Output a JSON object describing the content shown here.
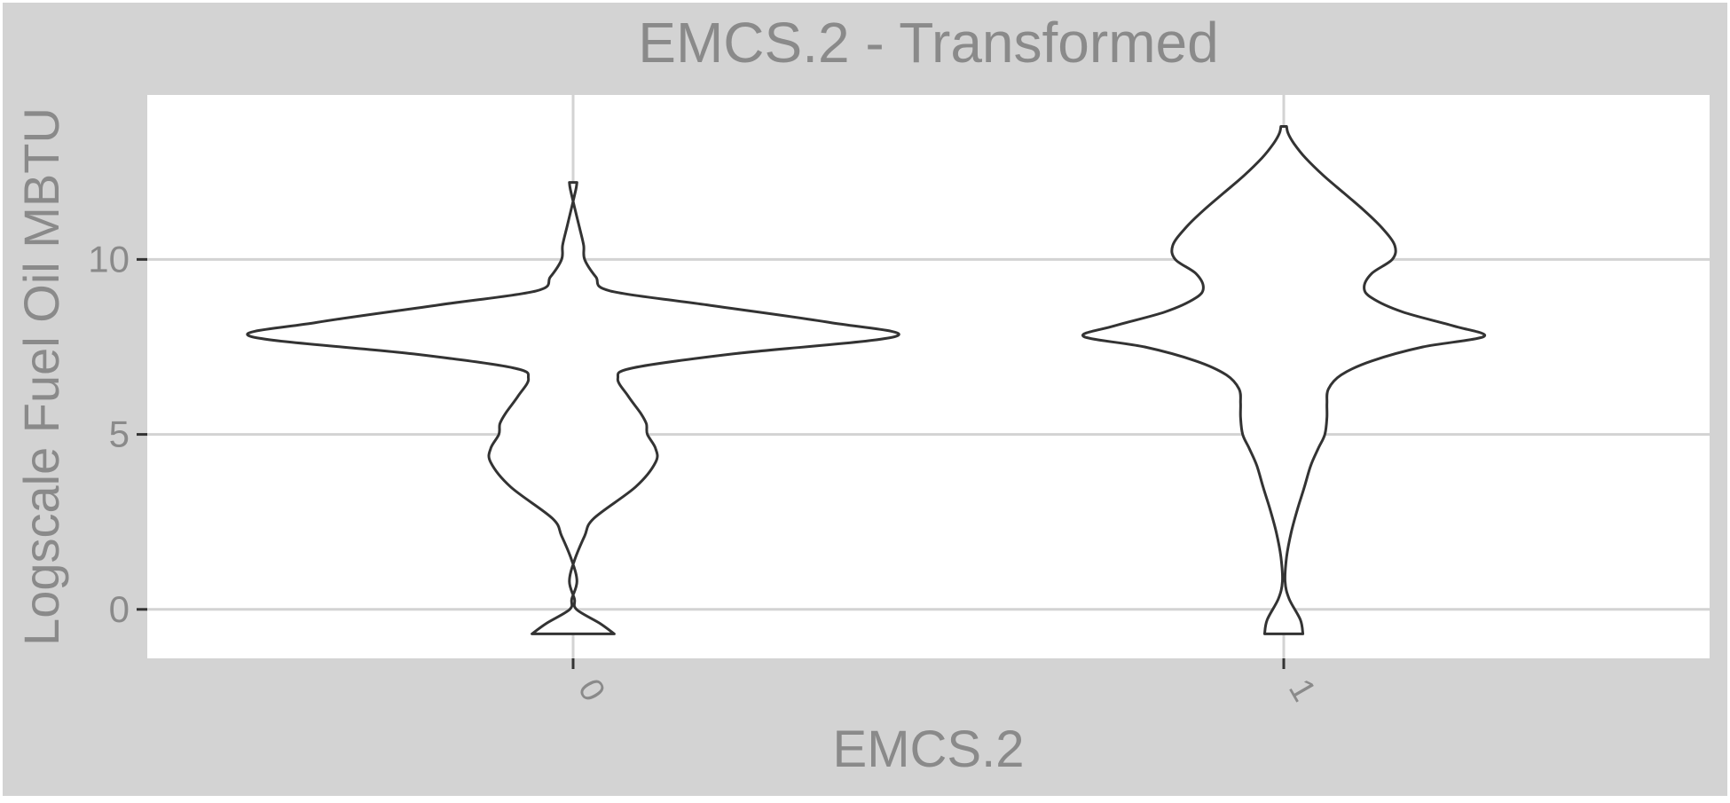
{
  "chart_data": {
    "type": "violin",
    "title": "EMCS.2 - Transformed",
    "xlabel": "EMCS.2",
    "ylabel": "Logscale Fuel Oil MBTU",
    "categories": [
      "0",
      "1"
    ],
    "ylim": [
      -1.4,
      14.7
    ],
    "yticks": [
      0,
      5,
      10
    ],
    "grid": true,
    "legend": "none",
    "colors": {
      "panel_background": "#d3d3d3",
      "plot_background": "#ffffff",
      "grid": "#d3d3d3",
      "text": "#8a8a8a",
      "outline": "#333333"
    },
    "violins": [
      {
        "category": "0",
        "range": [
          -0.7,
          12.2
        ],
        "density_profile": [
          [
            -0.7,
            0.078
          ],
          [
            -0.4,
            0.05
          ],
          [
            0.0,
            0.004
          ],
          [
            0.3,
            0.0
          ],
          [
            0.8,
            -0.01
          ],
          [
            1.4,
            0.0
          ],
          [
            2.1,
            0.02
          ],
          [
            2.6,
            0.038
          ],
          [
            3.5,
            0.12
          ],
          [
            4.2,
            0.159
          ],
          [
            4.6,
            0.159
          ],
          [
            5.0,
            0.143
          ],
          [
            5.3,
            0.141
          ],
          [
            5.6,
            0.13
          ],
          [
            6.1,
            0.105
          ],
          [
            6.6,
            0.085
          ],
          [
            6.9,
            0.115
          ],
          [
            7.3,
            0.31
          ],
          [
            7.8,
            0.63
          ],
          [
            8.2,
            0.5
          ],
          [
            8.7,
            0.26
          ],
          [
            9.1,
            0.07
          ],
          [
            9.5,
            0.042
          ],
          [
            10.0,
            0.02
          ],
          [
            10.4,
            0.018
          ],
          [
            10.9,
            0.01
          ],
          [
            11.5,
            0.0
          ],
          [
            12.0,
            -0.008
          ],
          [
            12.2,
            -0.01
          ]
        ]
      },
      {
        "category": "1",
        "range": [
          -0.7,
          13.8
        ],
        "density_profile": [
          [
            -0.7,
            0.035
          ],
          [
            -0.3,
            0.03
          ],
          [
            0.3,
            0.008
          ],
          [
            0.8,
            0.0
          ],
          [
            1.5,
            0.003
          ],
          [
            2.2,
            0.012
          ],
          [
            2.9,
            0.025
          ],
          [
            3.5,
            0.038
          ],
          [
            4.1,
            0.05
          ],
          [
            4.6,
            0.065
          ],
          [
            5.0,
            0.078
          ],
          [
            5.5,
            0.082
          ],
          [
            5.9,
            0.082
          ],
          [
            6.3,
            0.085
          ],
          [
            6.7,
            0.11
          ],
          [
            7.1,
            0.17
          ],
          [
            7.5,
            0.27
          ],
          [
            7.8,
            0.39
          ],
          [
            8.1,
            0.33
          ],
          [
            8.5,
            0.23
          ],
          [
            8.9,
            0.17
          ],
          [
            9.2,
            0.155
          ],
          [
            9.6,
            0.17
          ],
          [
            10.0,
            0.21
          ],
          [
            10.4,
            0.215
          ],
          [
            10.9,
            0.19
          ],
          [
            11.4,
            0.155
          ],
          [
            11.9,
            0.115
          ],
          [
            12.4,
            0.075
          ],
          [
            12.9,
            0.04
          ],
          [
            13.3,
            0.018
          ],
          [
            13.6,
            0.006
          ],
          [
            13.8,
            0.003
          ]
        ]
      }
    ]
  }
}
